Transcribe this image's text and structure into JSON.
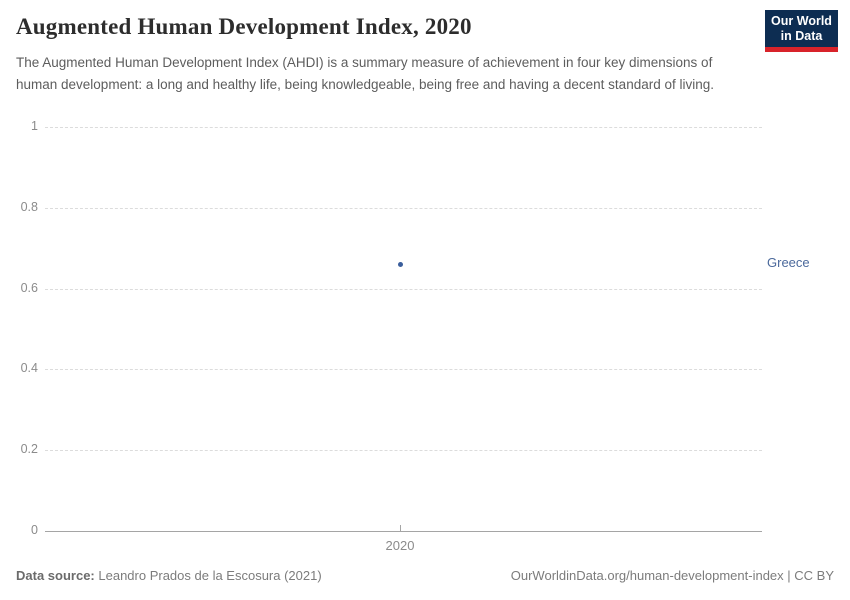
{
  "header": {
    "title": "Augmented Human Development Index, 2020",
    "subtitle": "The Augmented Human Development Index (AHDI) is a summary measure of achievement in four key dimensions of human development: a long and healthy life, being knowledgeable, being free and having a decent standard of living."
  },
  "logo": {
    "line1": "Our World",
    "line2": "in Data",
    "bg_color": "#0d2d52",
    "accent_color": "#d8232a"
  },
  "chart_data": {
    "type": "scatter",
    "title": "Augmented Human Development Index, 2020",
    "x": [
      2020
    ],
    "xtick_labels": [
      "2020"
    ],
    "series": [
      {
        "name": "Greece",
        "values": [
          0.66
        ],
        "color": "#4C6A9C"
      }
    ],
    "xlabel": "",
    "ylabel": "",
    "ylim": [
      0,
      1
    ],
    "yticks": [
      0,
      0.2,
      0.4,
      0.6,
      0.8,
      1
    ],
    "ytick_labels": [
      "0",
      "0.2",
      "0.4",
      "0.6",
      "0.8",
      "1"
    ],
    "grid": "horizontal dashed",
    "legend_position": "right-of-point"
  },
  "colors": {
    "entity": "#4C6A9C",
    "point": "#3a5e9c",
    "grid": "#dcdcdc",
    "axis": "#a5a5a5",
    "tick_text": "#8b8b8b"
  },
  "footer": {
    "source_label": "Data source:",
    "source_text": "Leandro Prados de la Escosura (2021)",
    "link_text": "OurWorldinData.org/human-development-index | CC BY"
  }
}
